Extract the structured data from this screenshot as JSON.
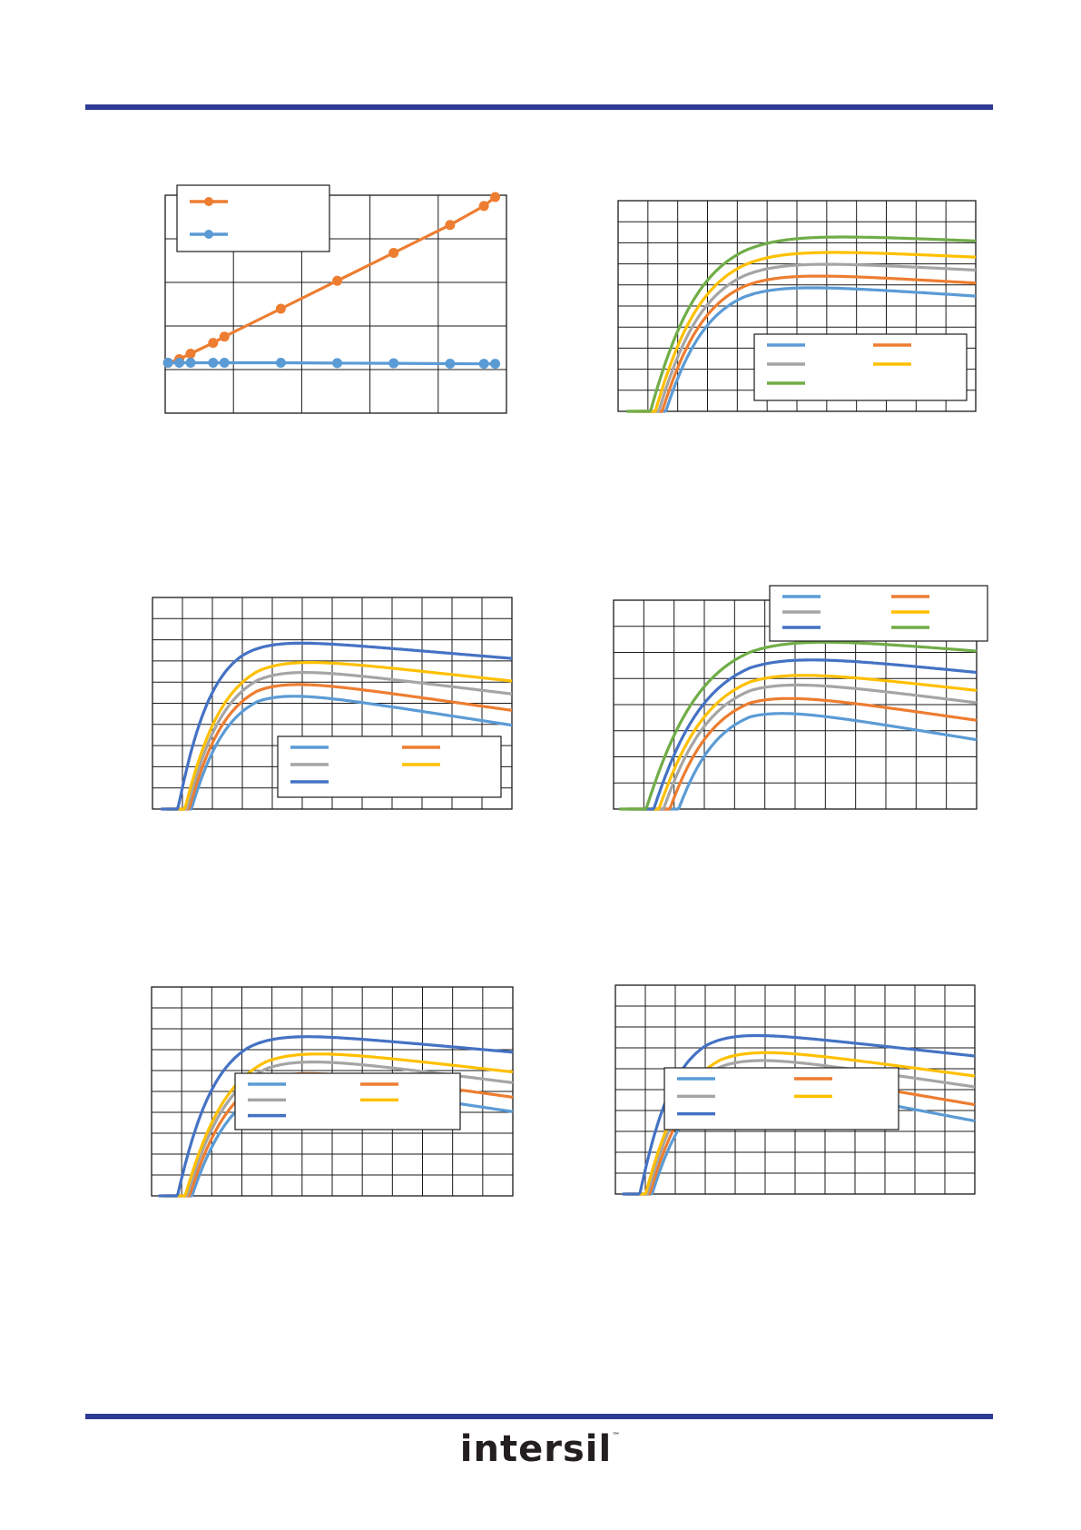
{
  "theme": {
    "rule_color": "#2e3b94"
  },
  "logo": {
    "text": "intersil",
    "tm": "™"
  },
  "chart_data": [
    {
      "type": "line",
      "series": [
        {
          "name": "",
          "color": "#ed7d31",
          "markers": true,
          "x": [
            0,
            0.2,
            0.4,
            0.8,
            1.0,
            2.0,
            3.0,
            4.0,
            5.0,
            5.6,
            5.8
          ],
          "y": [
            0.3,
            0.5,
            0.8,
            1.4,
            1.75,
            3.3,
            4.85,
            6.4,
            7.95,
            9.0,
            9.5
          ]
        },
        {
          "name": "",
          "color": "#5b9bd5",
          "markers": true,
          "x": [
            0,
            0.2,
            0.4,
            0.8,
            1.0,
            2.0,
            3.0,
            4.0,
            5.0,
            5.6,
            5.8
          ],
          "y": [
            0.3,
            0.3,
            0.3,
            0.3,
            0.3,
            0.3,
            0.28,
            0.27,
            0.25,
            0.24,
            0.24
          ]
        }
      ],
      "xlim": [
        -0.05,
        6
      ],
      "ylim": [
        -2.5,
        9.6
      ],
      "grid": {
        "x_divisions": 5,
        "y_divisions": 5
      },
      "legend": {
        "position": "top-left"
      }
    },
    {
      "type": "line",
      "series": [
        {
          "name": "",
          "color": "#5b9bd5",
          "x0": 0.07,
          "a": 54,
          "peak": 0.42,
          "b": 5
        },
        {
          "name": "",
          "color": "#ed7d31",
          "x0": 0.06,
          "a": 57,
          "peak": 0.42,
          "b": 4.5
        },
        {
          "name": "",
          "color": "#a5a5a5",
          "x0": 0.05,
          "a": 60,
          "peak": 0.42,
          "b": 4.0
        },
        {
          "name": "",
          "color": "#ffc000",
          "x0": 0.04,
          "a": 63,
          "peak": 0.42,
          "b": 3.5
        },
        {
          "name": "",
          "color": "#70ad47",
          "x0": 0.025,
          "a": 67,
          "peak": 0.42,
          "b": 3.2
        }
      ],
      "xlim": [
        0,
        1.2
      ],
      "ylim": [
        20,
        75
      ],
      "grid": {
        "x_divisions": 12,
        "y_divisions": 10
      },
      "legend": {
        "position": "bottom-right",
        "columns": 2
      }
    },
    {
      "type": "line",
      "series": [
        {
          "name": "",
          "color": "#5b9bd5",
          "x0": 0.05,
          "a": 52,
          "peak": 0.35,
          "b": 12
        },
        {
          "name": "",
          "color": "#ed7d31",
          "x0": 0.045,
          "a": 55,
          "peak": 0.35,
          "b": 11
        },
        {
          "name": "",
          "color": "#a5a5a5",
          "x0": 0.04,
          "a": 58,
          "peak": 0.35,
          "b": 9.5
        },
        {
          "name": "",
          "color": "#ffc000",
          "x0": 0.035,
          "a": 60.5,
          "peak": 0.35,
          "b": 8.5
        },
        {
          "name": "",
          "color": "#4472c4",
          "x0": 0.025,
          "a": 65,
          "peak": 0.3,
          "b": 6.5
        }
      ],
      "xlim": [
        0,
        1.2
      ],
      "ylim": [
        20,
        75
      ],
      "grid": {
        "x_divisions": 12,
        "y_divisions": 10
      },
      "legend": {
        "position": "bottom-right",
        "columns": 2
      }
    },
    {
      "type": "line",
      "series": [
        {
          "name": "",
          "color": "#5b9bd5",
          "x0": 0.12,
          "a": 48,
          "peak": 0.45,
          "b": 13
        },
        {
          "name": "",
          "color": "#ed7d31",
          "x0": 0.09,
          "a": 52,
          "peak": 0.45,
          "b": 11.5
        },
        {
          "name": "",
          "color": "#a5a5a5",
          "x0": 0.07,
          "a": 55.5,
          "peak": 0.45,
          "b": 10
        },
        {
          "name": "",
          "color": "#ffc000",
          "x0": 0.055,
          "a": 58,
          "peak": 0.45,
          "b": 9
        },
        {
          "name": "",
          "color": "#4472c4",
          "x0": 0.04,
          "a": 62,
          "peak": 0.45,
          "b": 8
        },
        {
          "name": "",
          "color": "#70ad47",
          "x0": 0.015,
          "a": 66.5,
          "peak": 0.45,
          "b": 6.5
        }
      ],
      "xlim": [
        0,
        1.2
      ],
      "ylim": [
        20,
        75
      ],
      "grid": {
        "x_divisions": 12,
        "y_divisions": 8
      },
      "legend": {
        "position": "top-right",
        "columns": 2
      }
    },
    {
      "type": "line",
      "series": [
        {
          "name": "",
          "color": "#5b9bd5",
          "x0": 0.045,
          "a": 52,
          "peak": 0.38,
          "b": 12
        },
        {
          "name": "",
          "color": "#ed7d31",
          "x0": 0.04,
          "a": 55,
          "peak": 0.38,
          "b": 11
        },
        {
          "name": "",
          "color": "#a5a5a5",
          "x0": 0.035,
          "a": 58,
          "peak": 0.38,
          "b": 10
        },
        {
          "name": "",
          "color": "#ffc000",
          "x0": 0.03,
          "a": 60,
          "peak": 0.38,
          "b": 9
        },
        {
          "name": "",
          "color": "#4472c4",
          "x0": 0.02,
          "a": 64,
          "peak": 0.32,
          "b": 7
        }
      ],
      "xlim": [
        0,
        1.2
      ],
      "ylim": [
        20,
        75
      ],
      "grid": {
        "x_divisions": 12,
        "y_divisions": 10
      },
      "legend": {
        "position": "bottom-right",
        "columns": 2
      }
    },
    {
      "type": "line",
      "series": [
        {
          "name": "",
          "color": "#5b9bd5",
          "x0": 0.04,
          "a": 52,
          "peak": 0.35,
          "b": 15
        },
        {
          "name": "",
          "color": "#ed7d31",
          "x0": 0.035,
          "a": 55,
          "peak": 0.35,
          "b": 13.5
        },
        {
          "name": "",
          "color": "#a5a5a5",
          "x0": 0.03,
          "a": 58,
          "peak": 0.35,
          "b": 11.5
        },
        {
          "name": "",
          "color": "#ffc000",
          "x0": 0.025,
          "a": 60,
          "peak": 0.35,
          "b": 10.5
        },
        {
          "name": "",
          "color": "#4472c4",
          "x0": 0.02,
          "a": 64,
          "peak": 0.3,
          "b": 8.5
        }
      ],
      "xlim": [
        0,
        1.2
      ],
      "ylim": [
        20,
        75
      ],
      "grid": {
        "x_divisions": 12,
        "y_divisions": 10
      },
      "legend": {
        "position": "bottom-left",
        "columns": 2
      }
    }
  ]
}
